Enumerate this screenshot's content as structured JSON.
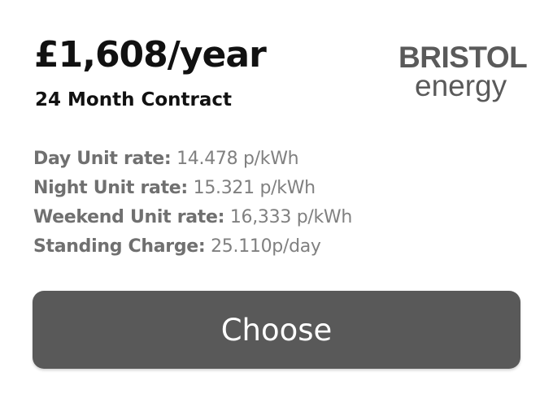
{
  "plan": {
    "price": "£1,608/year",
    "contract": "24 Month Contract"
  },
  "logo": {
    "line1": "BRISTOL",
    "line2": "energy",
    "color": "#5a5a5a"
  },
  "rates": [
    {
      "label": "Day Unit rate:",
      "value": "14.478 p/kWh"
    },
    {
      "label": "Night Unit rate:",
      "value": "15.321 p/kWh"
    },
    {
      "label": "Weekend Unit rate:",
      "value": "16,333 p/kWh"
    },
    {
      "label": "Standing Charge:",
      "value": "25.110p/day"
    }
  ],
  "action": {
    "choose_label": "Choose",
    "button_color": "#595959"
  }
}
